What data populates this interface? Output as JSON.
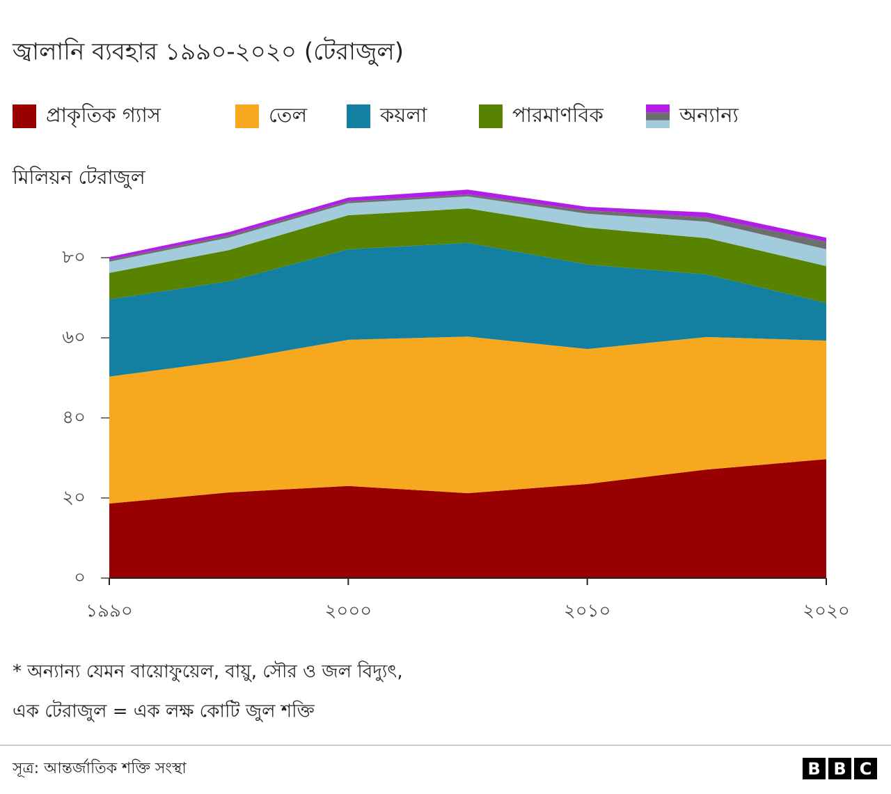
{
  "chart_data": {
    "type": "stacked-area",
    "title": "জ্বালানি ব্যবহার ১৯৯০-২০২০ (টেরাজুল)",
    "y_label": "মিলিয়ন টেরাজুল",
    "x": [
      1990,
      1995,
      2000,
      2005,
      2010,
      2015,
      2020
    ],
    "xlim": [
      1990,
      2020
    ],
    "xticks": [
      {
        "value": 1990,
        "label": "১৯৯০"
      },
      {
        "value": 2000,
        "label": "২০০০"
      },
      {
        "value": 2010,
        "label": "২০১০"
      },
      {
        "value": 2020,
        "label": "২০২০"
      }
    ],
    "ylim": [
      0,
      100
    ],
    "yticks": [
      {
        "value": 0,
        "label": "০"
      },
      {
        "value": 20,
        "label": "২০"
      },
      {
        "value": 40,
        "label": "৪০"
      },
      {
        "value": 60,
        "label": "৬০"
      },
      {
        "value": 80,
        "label": "৮০"
      }
    ],
    "series": [
      {
        "name": "প্রাকৃতিক গ্যাস",
        "color": "#990000",
        "values": [
          18.6,
          21.4,
          23.0,
          21.2,
          23.5,
          27.1,
          29.7
        ]
      },
      {
        "name": "তেল",
        "color": "#f6a91f",
        "values": [
          31.7,
          32.9,
          36.5,
          39.1,
          33.7,
          33.1,
          29.6
        ]
      },
      {
        "name": "কয়লা",
        "color": "#1380a1",
        "values": [
          19.3,
          19.8,
          22.6,
          23.4,
          21.1,
          15.6,
          9.4
        ]
      },
      {
        "name": "পারমাণবিক",
        "color": "#588300",
        "values": [
          6.6,
          7.8,
          8.5,
          8.6,
          9.2,
          9.1,
          9.2
        ]
      },
      {
        "name": "অন্যান্য",
        "layers": [
          {
            "color": "#a2ccdb",
            "values": [
              2.8,
              3.1,
              3.0,
              3.0,
              3.5,
              4.1,
              4.2
            ]
          },
          {
            "color": "#6e6e6e",
            "values": [
              0.5,
              0.6,
              0.5,
              0.5,
              0.8,
              1.1,
              1.9
            ]
          },
          {
            "color": "#b31de8",
            "values": [
              0.7,
              0.8,
              0.9,
              1.2,
              0.9,
              1.2,
              1.0
            ]
          }
        ]
      }
    ],
    "notes": [
      "* অন্যান্য যেমন বায়োফুয়েল, বায়ু, সৌর ও জল বিদ্যুৎ,",
      "এক টেরাজুল = এক লক্ষ কোটি জুল শক্তি"
    ],
    "source": "সূত্র: আন্তর্জাতিক শক্তি সংস্থা",
    "logo": [
      "B",
      "B",
      "C"
    ]
  }
}
